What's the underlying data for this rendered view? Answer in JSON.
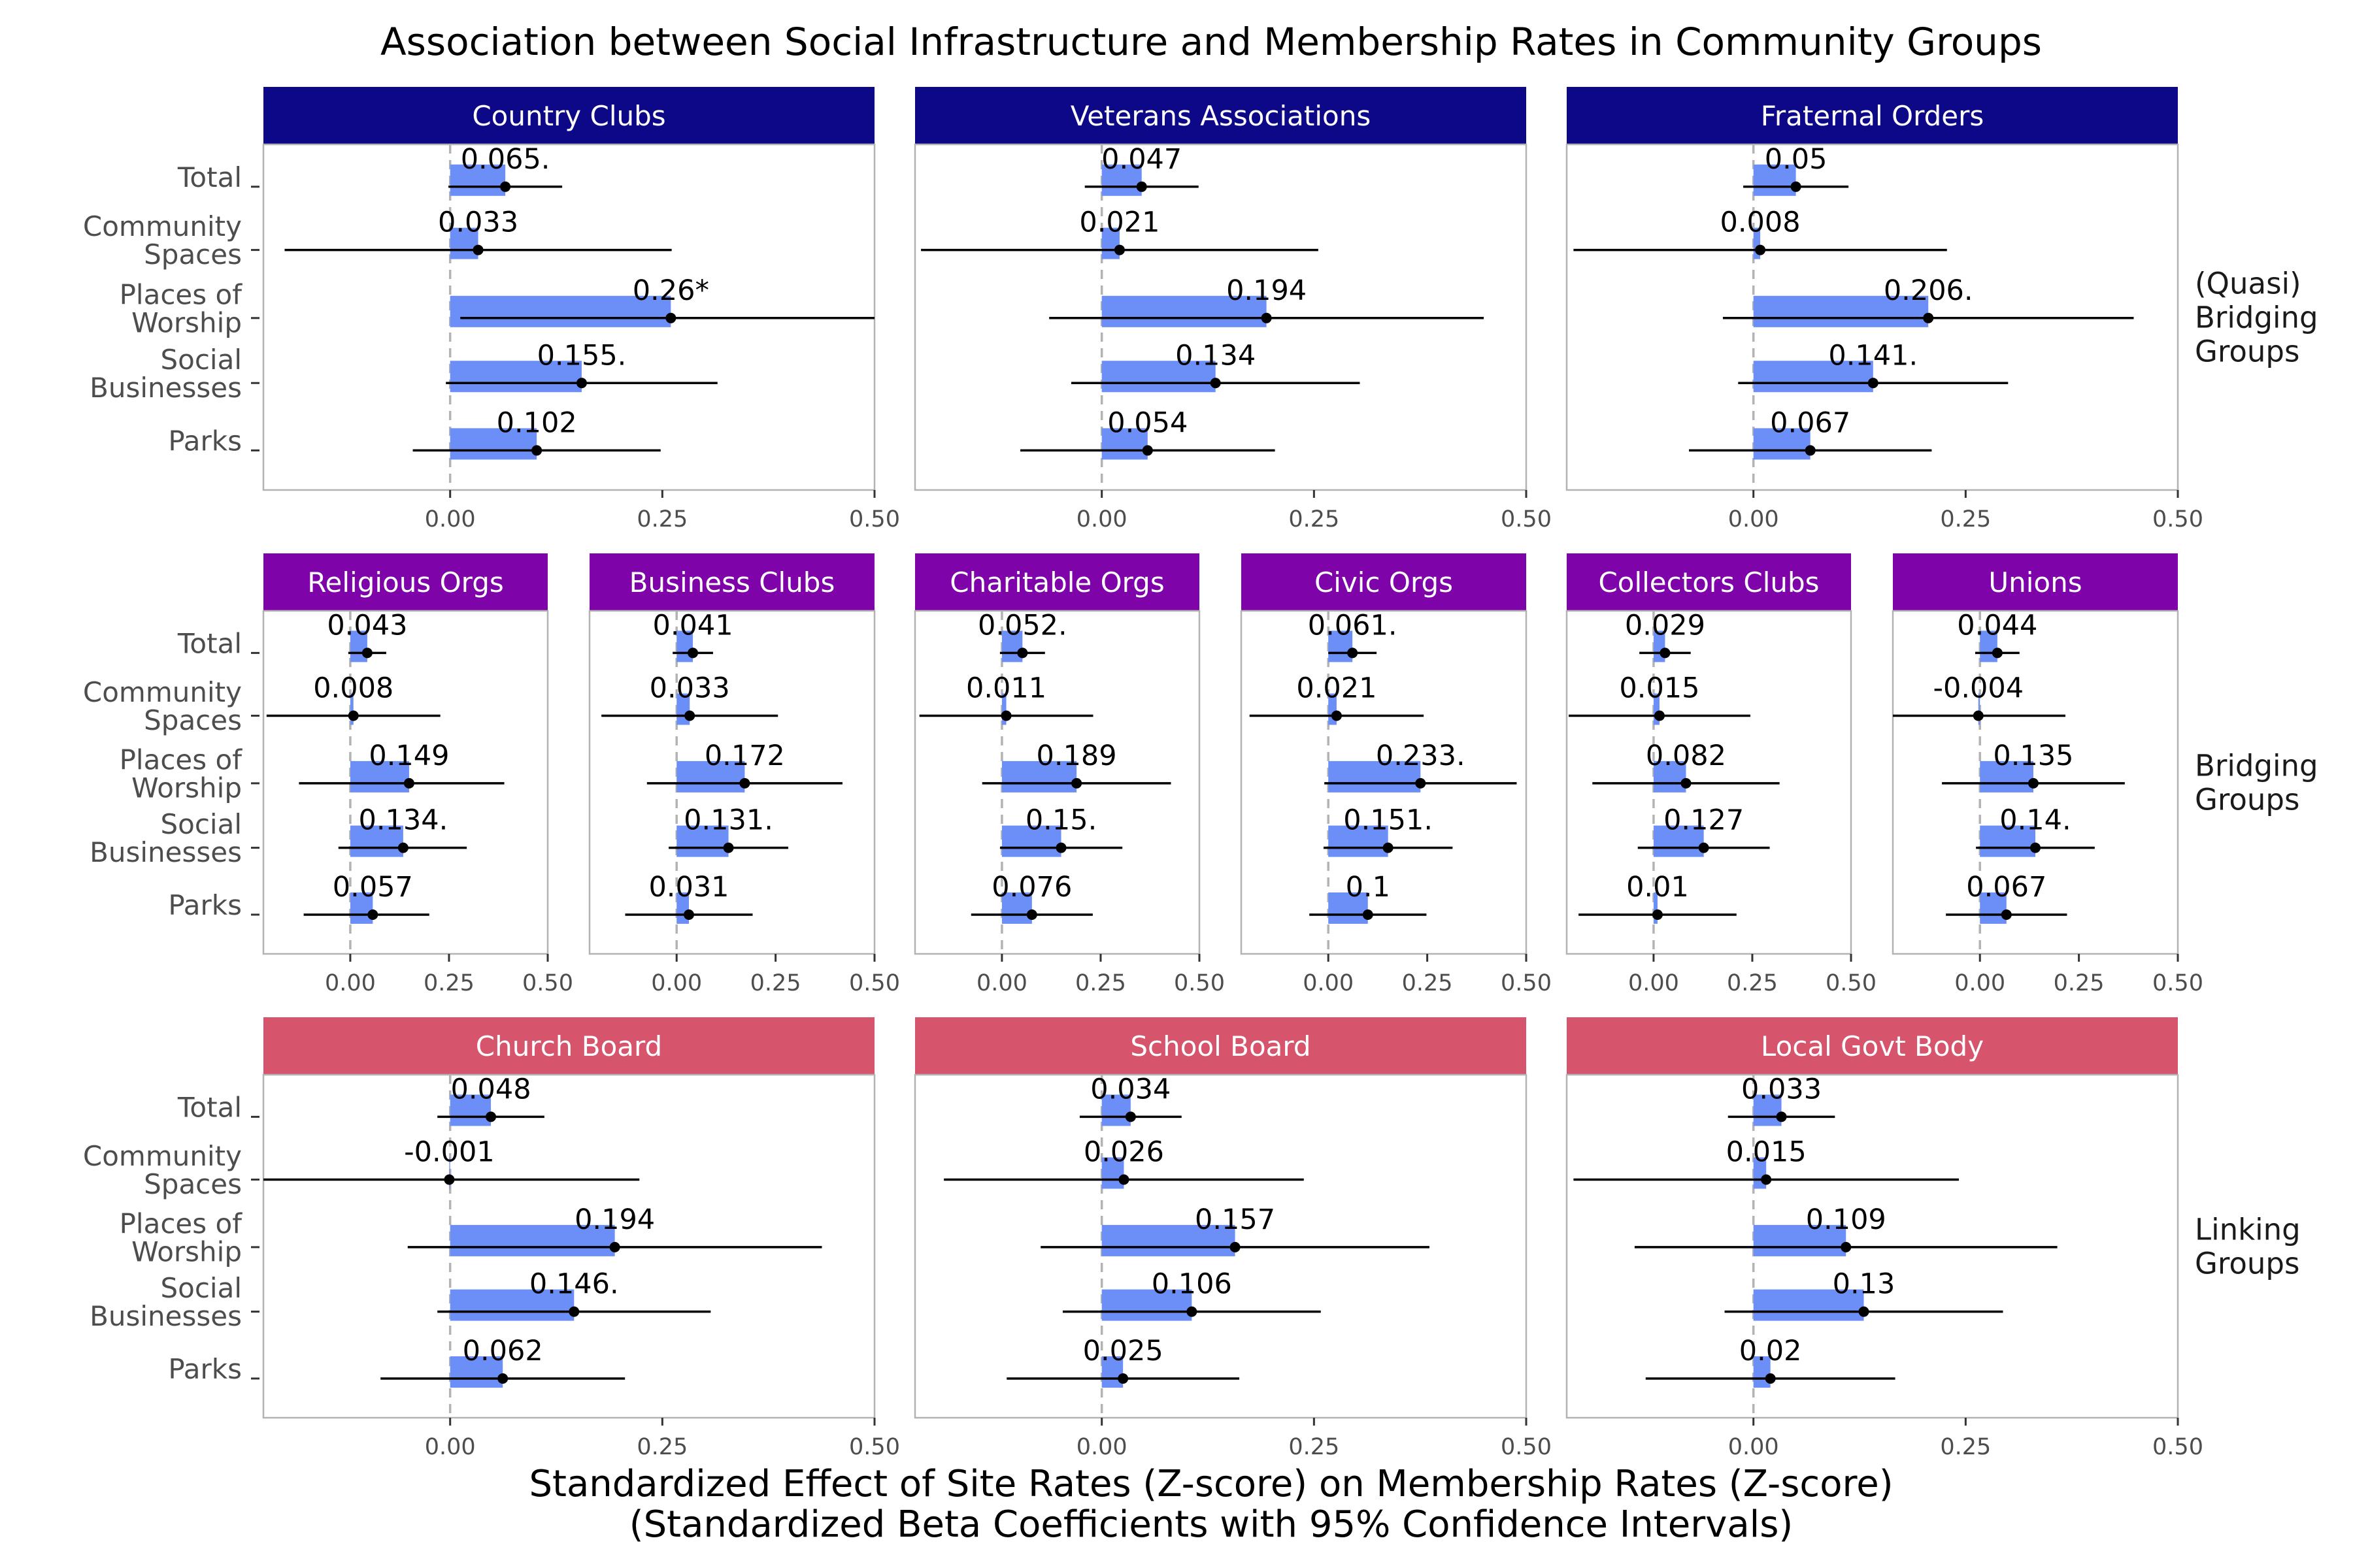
{
  "chart_data": {
    "type": "bar",
    "title": "Association between Social Infrastructure and Membership Rates in Community Groups",
    "xlabel": "Standardized Effect of Site Rates (Z-score) on Membership Rates (Z-score)\n(Standardized Beta Coefficients with 95% Confidence Intervals)",
    "ylabel": "",
    "categories": [
      "Total",
      "Community\nSpaces",
      "Places of\nWorship",
      "Social\nBusinesses",
      "Parks"
    ],
    "x_ticks": [
      "0.00",
      "0.25",
      "0.50"
    ],
    "colors": {
      "bar": "#6b8ef7",
      "quasi_bridging_strip": "#0d0887",
      "bridging_strip": "#7e03a8",
      "linking_strip": "#d6556d",
      "zero_line": "#b3b3b3",
      "panel_border": "#b3b3b3"
    },
    "grid": false,
    "rows": [
      {
        "label": "(Quasi)\nBridging\nGroups",
        "strip_color": "#0d0887",
        "panels": [
          {
            "name": "Country Clubs",
            "xlim": [
              -0.22,
              0.5
            ],
            "values": [
              0.065,
              0.033,
              0.26,
              0.155,
              0.102
            ],
            "labels": [
              "0.065.",
              "0.033",
              "0.26*",
              "0.155.",
              "0.102"
            ],
            "ci_low": [
              -0.002,
              -0.195,
              0.012,
              -0.005,
              -0.044
            ],
            "ci_high": [
              0.132,
              0.261,
              0.508,
              0.315,
              0.248
            ]
          },
          {
            "name": "Veterans Associations",
            "xlim": [
              -0.22,
              0.5
            ],
            "values": [
              0.047,
              0.021,
              0.194,
              0.134,
              0.054
            ],
            "labels": [
              "0.047",
              "0.021",
              "0.194",
              "0.134",
              "0.054"
            ],
            "ci_low": [
              -0.02,
              -0.213,
              -0.062,
              -0.036,
              -0.096
            ],
            "ci_high": [
              0.114,
              0.255,
              0.45,
              0.304,
              0.204
            ]
          },
          {
            "name": "Fraternal Orders",
            "xlim": [
              -0.22,
              0.5
            ],
            "values": [
              0.05,
              0.008,
              0.206,
              0.141,
              0.067
            ],
            "labels": [
              "0.05",
              "0.008",
              "0.206.",
              "0.141.",
              "0.067"
            ],
            "ci_low": [
              -0.012,
              -0.212,
              -0.036,
              -0.018,
              -0.076
            ],
            "ci_high": [
              0.112,
              0.228,
              0.448,
              0.3,
              0.21
            ]
          }
        ]
      },
      {
        "label": "Bridging\nGroups",
        "strip_color": "#7e03a8",
        "panels": [
          {
            "name": "Religious Orgs",
            "xlim": [
              -0.22,
              0.5
            ],
            "values": [
              0.043,
              0.008,
              0.149,
              0.134,
              0.057
            ],
            "labels": [
              "0.043",
              "0.008",
              "0.149",
              "0.134.",
              "0.057"
            ],
            "ci_low": [
              -0.005,
              -0.212,
              -0.13,
              -0.03,
              -0.118
            ],
            "ci_high": [
              0.091,
              0.228,
              0.39,
              0.295,
              0.2
            ]
          },
          {
            "name": "Business Clubs",
            "xlim": [
              -0.22,
              0.5
            ],
            "values": [
              0.041,
              0.033,
              0.172,
              0.131,
              0.031
            ],
            "labels": [
              "0.041",
              "0.033",
              "0.172",
              "0.131.",
              "0.031"
            ],
            "ci_low": [
              -0.01,
              -0.19,
              -0.075,
              -0.02,
              -0.13
            ],
            "ci_high": [
              0.092,
              0.256,
              0.419,
              0.282,
              0.192
            ]
          },
          {
            "name": "Charitable Orgs",
            "xlim": [
              -0.22,
              0.5
            ],
            "values": [
              0.052,
              0.011,
              0.189,
              0.15,
              0.076
            ],
            "labels": [
              "0.052.",
              "0.011",
              "0.189",
              "0.15.",
              "0.076"
            ],
            "ci_low": [
              -0.005,
              -0.209,
              -0.05,
              -0.005,
              -0.078
            ],
            "ci_high": [
              0.109,
              0.231,
              0.428,
              0.305,
              0.23
            ]
          },
          {
            "name": "Civic Orgs",
            "xlim": [
              -0.22,
              0.5
            ],
            "values": [
              0.061,
              0.021,
              0.233,
              0.151,
              0.1
            ],
            "labels": [
              "0.061.",
              "0.021",
              "0.233.",
              "0.151.",
              "0.1"
            ],
            "ci_low": [
              0.0,
              -0.199,
              -0.01,
              -0.012,
              -0.048
            ],
            "ci_high": [
              0.122,
              0.241,
              0.476,
              0.314,
              0.248
            ]
          },
          {
            "name": "Collectors Clubs",
            "xlim": [
              -0.22,
              0.5
            ],
            "values": [
              0.029,
              0.015,
              0.082,
              0.127,
              0.01
            ],
            "labels": [
              "0.029",
              "0.015",
              "0.082",
              "0.127",
              "0.01"
            ],
            "ci_low": [
              -0.036,
              -0.215,
              -0.155,
              -0.04,
              -0.19
            ],
            "ci_high": [
              0.094,
              0.245,
              0.319,
              0.294,
              0.21
            ]
          },
          {
            "name": "Unions",
            "xlim": [
              -0.22,
              0.5
            ],
            "values": [
              0.044,
              -0.004,
              0.135,
              0.14,
              0.067
            ],
            "labels": [
              "0.044",
              "-0.004",
              "0.135",
              "0.14.",
              "0.067"
            ],
            "ci_low": [
              -0.012,
              -0.224,
              -0.096,
              -0.01,
              -0.086
            ],
            "ci_high": [
              0.1,
              0.216,
              0.366,
              0.29,
              0.22
            ]
          }
        ]
      },
      {
        "label": "Linking\nGroups",
        "strip_color": "#d6556d",
        "panels": [
          {
            "name": "Church Board",
            "xlim": [
              -0.22,
              0.5
            ],
            "values": [
              0.048,
              -0.001,
              0.194,
              0.146,
              0.062
            ],
            "labels": [
              "0.048",
              "-0.001",
              "0.194",
              "0.146.",
              "0.062"
            ],
            "ci_low": [
              -0.015,
              -0.235,
              -0.05,
              -0.015,
              -0.082
            ],
            "ci_high": [
              0.111,
              0.223,
              0.438,
              0.307,
              0.206
            ]
          },
          {
            "name": "School Board",
            "xlim": [
              -0.22,
              0.5
            ],
            "values": [
              0.034,
              0.026,
              0.157,
              0.106,
              0.025
            ],
            "labels": [
              "0.034",
              "0.026",
              "0.157",
              "0.106",
              "0.025"
            ],
            "ci_low": [
              -0.026,
              -0.186,
              -0.072,
              -0.046,
              -0.112
            ],
            "ci_high": [
              0.094,
              0.238,
              0.386,
              0.258,
              0.162
            ]
          },
          {
            "name": "Local Govt Body",
            "xlim": [
              -0.22,
              0.5
            ],
            "values": [
              0.033,
              0.015,
              0.109,
              0.13,
              0.02
            ],
            "labels": [
              "0.033",
              "0.015",
              "0.109",
              "0.13",
              "0.02"
            ],
            "ci_low": [
              -0.03,
              -0.212,
              -0.14,
              -0.034,
              -0.127
            ],
            "ci_high": [
              0.096,
              0.242,
              0.358,
              0.294,
              0.167
            ]
          }
        ]
      }
    ]
  }
}
